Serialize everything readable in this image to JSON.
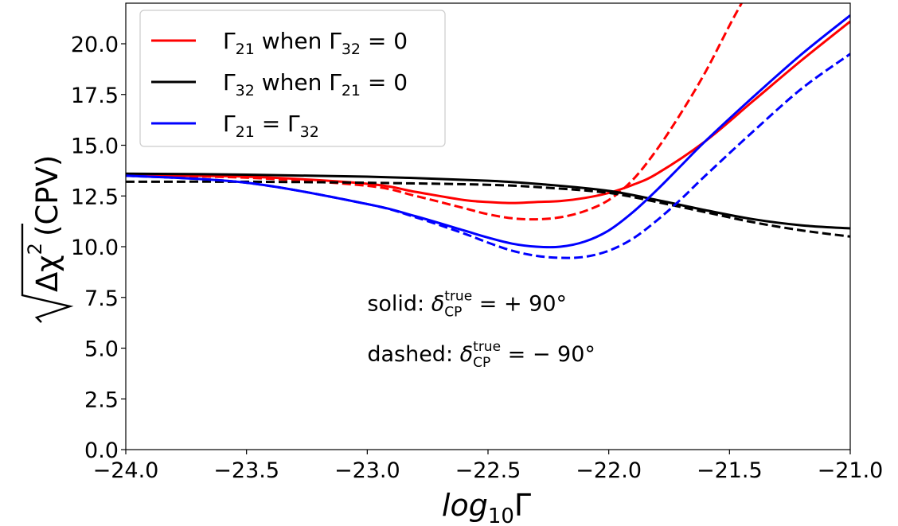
{
  "chart_data": {
    "type": "line",
    "xlabel": "log10Γ",
    "xlabel_parts": {
      "base": "log",
      "sub": "10",
      "tail": "Γ"
    },
    "ylabel": "√Δχ² (CPV)",
    "ylabel_parts": {
      "radical": "Δχ",
      "sup": "2",
      "tail": "(CPV)"
    },
    "xlim": [
      -24.0,
      -21.0
    ],
    "ylim": [
      0.0,
      22.0
    ],
    "xticks": [
      -24.0,
      -23.5,
      -23.0,
      -22.5,
      -22.0,
      -21.5,
      -21.0
    ],
    "xtick_labels": [
      "−24.0",
      "−23.5",
      "−23.0",
      "−22.5",
      "−22.0",
      "−21.5",
      "−21.0"
    ],
    "yticks": [
      0.0,
      2.5,
      5.0,
      7.5,
      10.0,
      12.5,
      15.0,
      17.5,
      20.0
    ],
    "ytick_labels": [
      "0.0",
      "2.5",
      "5.0",
      "7.5",
      "10.0",
      "12.5",
      "15.0",
      "17.5",
      "20.0"
    ],
    "grid": false,
    "legend_position": "top-left",
    "legend": [
      {
        "color": "#ff0000",
        "parts": [
          {
            "t": "Γ"
          },
          {
            "sub": "21"
          },
          {
            "t": " when Γ"
          },
          {
            "sub": "32"
          },
          {
            "t": " = 0"
          }
        ]
      },
      {
        "color": "#000000",
        "parts": [
          {
            "t": "Γ"
          },
          {
            "sub": "32"
          },
          {
            "t": " when Γ"
          },
          {
            "sub": "21"
          },
          {
            "t": " = 0"
          }
        ]
      },
      {
        "color": "#0000ff",
        "parts": [
          {
            "t": "Γ"
          },
          {
            "sub": "21"
          },
          {
            "t": " = Γ"
          },
          {
            "sub": "32"
          }
        ]
      }
    ],
    "annotations": [
      {
        "prefix": "solid: ",
        "symbol": "δ",
        "sup": "true",
        "sub": "CP",
        "suffix": " = + 90°",
        "x": -23.0,
        "y": 7.2
      },
      {
        "prefix": "dashed: ",
        "symbol": "δ",
        "sup": "true",
        "sub": "CP",
        "suffix": " = − 90°",
        "x": -23.0,
        "y": 4.7
      }
    ],
    "series": [
      {
        "color": "#ff0000",
        "style": "solid",
        "x": [
          -24.0,
          -23.5,
          -23.0,
          -22.8,
          -22.6,
          -22.5,
          -22.4,
          -22.3,
          -22.2,
          -22.1,
          -22.0,
          -21.9,
          -21.8,
          -21.6,
          -21.4,
          -21.2,
          -21.0
        ],
        "y": [
          13.5,
          13.45,
          13.1,
          12.7,
          12.3,
          12.2,
          12.15,
          12.2,
          12.25,
          12.4,
          12.65,
          13.05,
          13.6,
          15.2,
          17.2,
          19.2,
          21.1
        ]
      },
      {
        "color": "#ff0000",
        "style": "dashed",
        "x": [
          -24.0,
          -23.5,
          -23.0,
          -22.8,
          -22.6,
          -22.5,
          -22.4,
          -22.3,
          -22.2,
          -22.1,
          -22.0,
          -21.9,
          -21.8,
          -21.7,
          -21.6,
          -21.5,
          -21.45
        ],
        "y": [
          13.5,
          13.4,
          13.0,
          12.5,
          11.9,
          11.6,
          11.4,
          11.35,
          11.45,
          11.75,
          12.3,
          13.3,
          14.8,
          16.6,
          18.6,
          20.9,
          22.0
        ]
      },
      {
        "color": "#000000",
        "style": "solid",
        "x": [
          -24.0,
          -23.5,
          -23.0,
          -22.5,
          -22.25,
          -22.0,
          -21.8,
          -21.6,
          -21.4,
          -21.2,
          -21.0
        ],
        "y": [
          13.6,
          13.55,
          13.45,
          13.25,
          13.05,
          12.75,
          12.3,
          11.8,
          11.35,
          11.05,
          10.9
        ]
      },
      {
        "color": "#000000",
        "style": "dashed",
        "x": [
          -24.0,
          -23.5,
          -23.0,
          -22.5,
          -22.25,
          -22.0,
          -21.8,
          -21.6,
          -21.4,
          -21.2,
          -21.0
        ],
        "y": [
          13.2,
          13.2,
          13.15,
          13.05,
          12.9,
          12.65,
          12.2,
          11.7,
          11.2,
          10.8,
          10.5
        ]
      },
      {
        "color": "#0000ff",
        "style": "solid",
        "x": [
          -24.0,
          -23.5,
          -23.0,
          -22.8,
          -22.6,
          -22.5,
          -22.4,
          -22.3,
          -22.2,
          -22.1,
          -22.0,
          -21.9,
          -21.8,
          -21.7,
          -21.6,
          -21.4,
          -21.2,
          -21.0
        ],
        "y": [
          13.5,
          13.15,
          12.1,
          11.5,
          10.8,
          10.45,
          10.15,
          10.0,
          10.0,
          10.25,
          10.8,
          11.7,
          12.8,
          14.0,
          15.2,
          17.4,
          19.5,
          21.4
        ]
      },
      {
        "color": "#0000ff",
        "style": "dashed",
        "x": [
          -24.0,
          -23.5,
          -23.0,
          -22.8,
          -22.6,
          -22.5,
          -22.4,
          -22.3,
          -22.2,
          -22.1,
          -22.0,
          -21.9,
          -21.8,
          -21.7,
          -21.6,
          -21.4,
          -21.2,
          -21.0
        ],
        "y": [
          13.5,
          13.15,
          12.1,
          11.45,
          10.65,
          10.2,
          9.8,
          9.55,
          9.45,
          9.5,
          9.8,
          10.4,
          11.3,
          12.35,
          13.5,
          15.7,
          17.8,
          19.5
        ]
      }
    ]
  }
}
